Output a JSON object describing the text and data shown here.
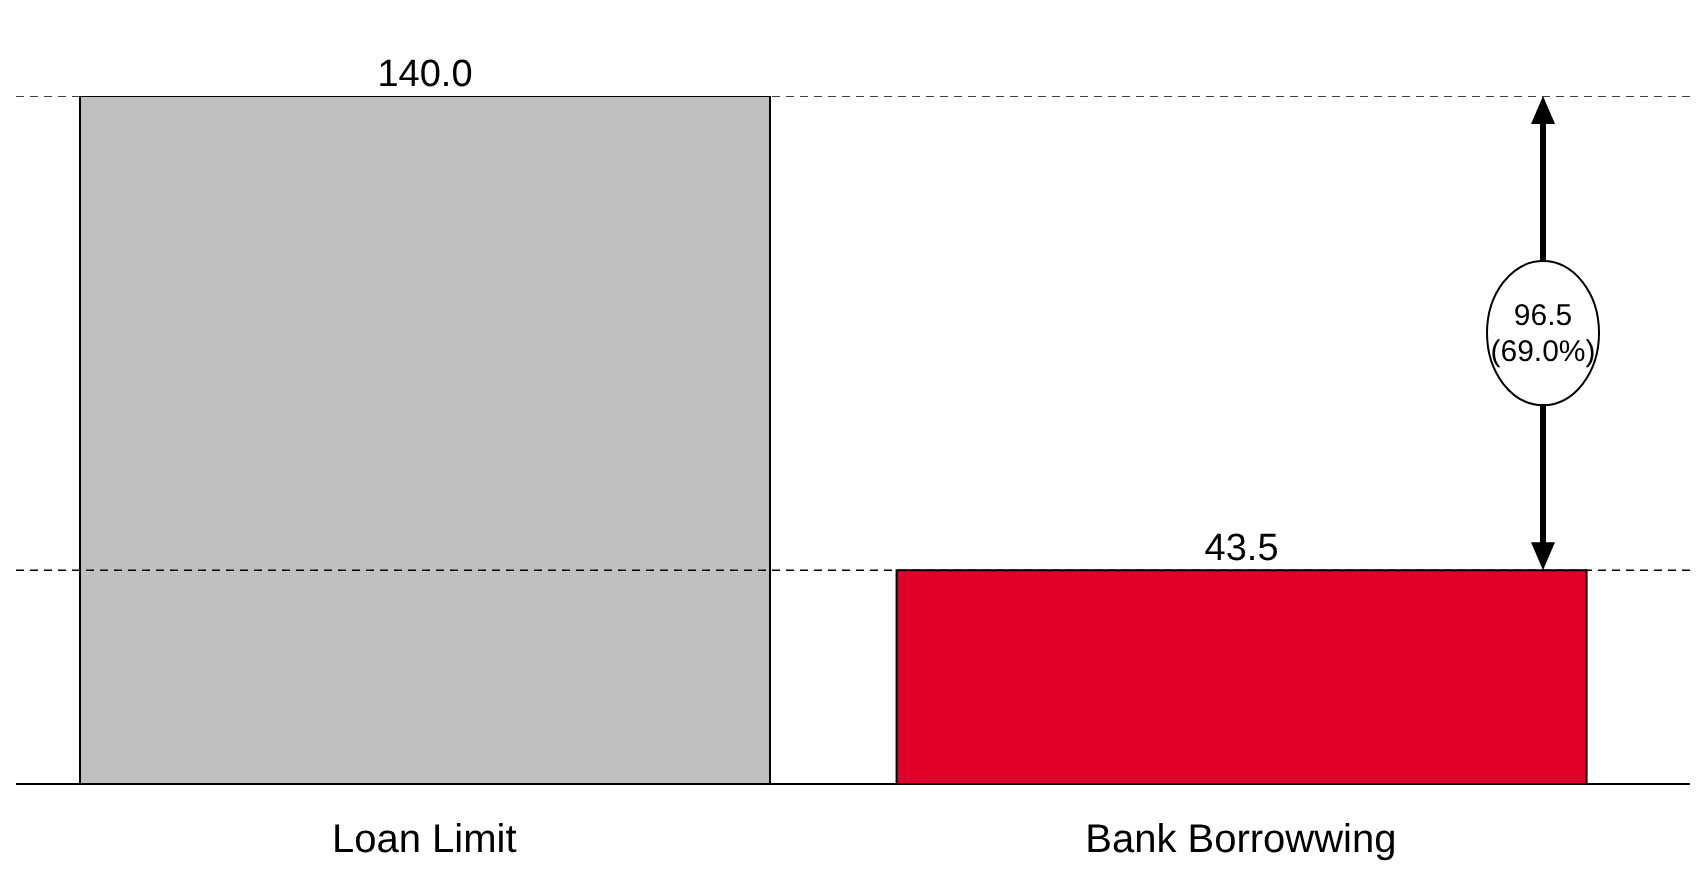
{
  "chart_data": {
    "type": "bar",
    "categories": [
      "Loan Limit",
      "Bank Borrowwing"
    ],
    "values": [
      140.0,
      43.5
    ],
    "colors": [
      "#c0c0c0",
      "#e0002a"
    ],
    "value_labels": [
      "140.0",
      "43.5"
    ],
    "ref_lines": [
      {
        "axis": "y",
        "value": 140.0,
        "color": "#000000",
        "line_style": "dashed"
      },
      {
        "axis": "y",
        "value": 43.5,
        "color": "#000000",
        "line_style": "dashed"
      }
    ],
    "annotations": [
      "96.5\n(69.0%)"
    ]
  }
}
